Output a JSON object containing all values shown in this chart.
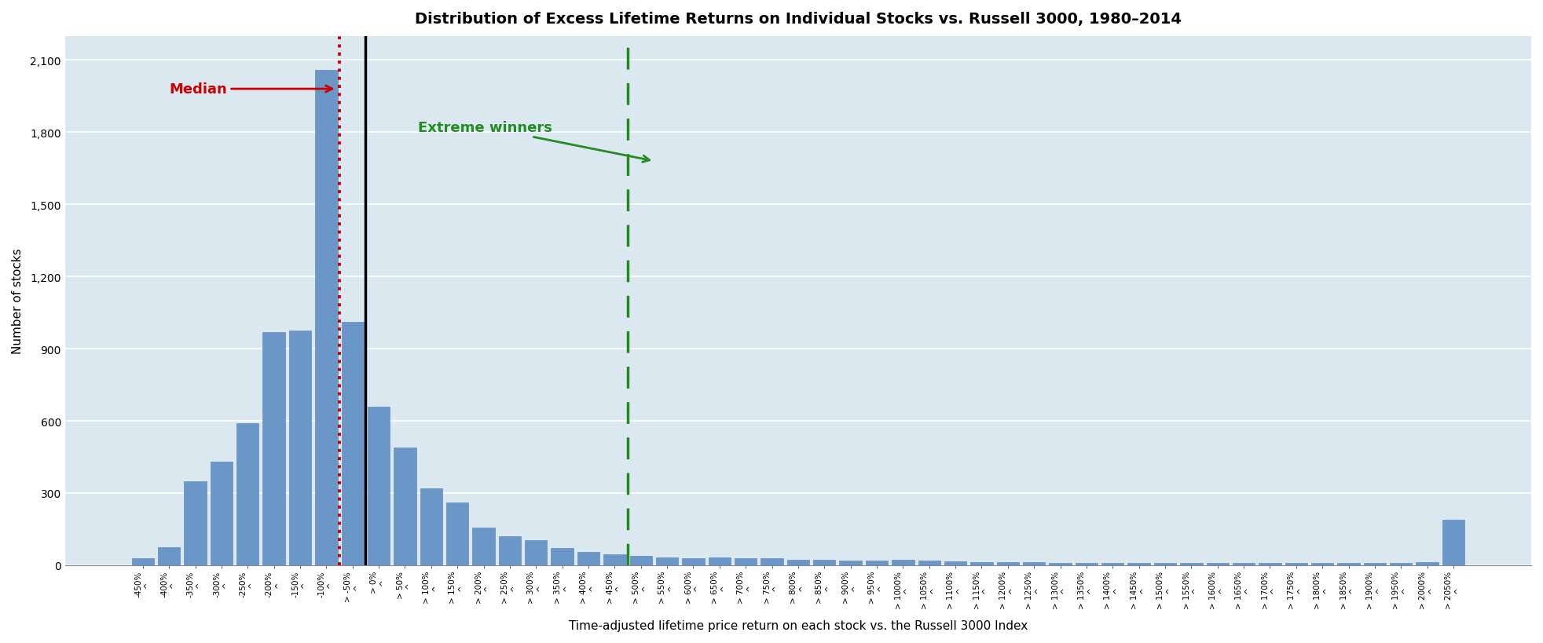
{
  "title": "Distribution of Excess Lifetime Returns on Individual Stocks vs. Russell 3000, 1980–2014",
  "ylabel": "Number of stocks",
  "xlabel": "Time-adjusted lifetime price return on each stock vs. the Russell 3000 Index",
  "bar_color": "#6b96c8",
  "bar_edge_color": "#5580b0",
  "background_color": "#dce8f0",
  "fig_bg": "#ffffff",
  "ylim": [
    0,
    2200
  ],
  "ytick_values": [
    0,
    300,
    600,
    900,
    1200,
    1500,
    1800,
    2100
  ],
  "categories_line1": [
    "-450%",
    "-400%",
    "-350%",
    "-300%",
    "-250%",
    "-200%",
    "-150%",
    "-100%",
    "> -50%",
    "> 0%",
    "> 50%",
    "> 100%",
    "> 150%",
    "> 200%",
    "> 250%",
    "> 300%",
    "> 350%",
    "> 400%",
    "> 450%",
    "> 500%",
    "> 550%",
    "> 600%",
    "> 650%",
    "> 700%",
    "> 750%",
    "> 800%",
    "> 850%",
    "> 900%",
    "> 950%",
    "> 1000%",
    "> 1050%",
    "> 1100%",
    "> 1150%",
    "> 1200%",
    "> 1250%",
    "> 1300%",
    "> 1350%",
    "> 1400%",
    "> 1450%",
    "> 1500%",
    "> 1550%",
    "> 1600%",
    "> 1650%",
    "> 1700%",
    "> 1750%",
    "> 1800%",
    "> 1850%",
    "> 1900%",
    "> 1950%",
    "> 2000%",
    "> 2050%"
  ],
  "has_caret": [
    false,
    false,
    false,
    false,
    false,
    false,
    false,
    false,
    true,
    true,
    true,
    true,
    true,
    true,
    true,
    true,
    true,
    true,
    true,
    true,
    true,
    true,
    true,
    true,
    true,
    true,
    true,
    true,
    true,
    false,
    false,
    false,
    false,
    false,
    false,
    false,
    false,
    false,
    false,
    false,
    false,
    false,
    false,
    false,
    false,
    false,
    false,
    false,
    false,
    false,
    true
  ],
  "values": [
    30,
    75,
    350,
    430,
    590,
    970,
    975,
    2060,
    1010,
    660,
    490,
    320,
    260,
    155,
    120,
    105,
    70,
    55,
    45,
    38,
    32,
    28,
    32,
    28,
    28,
    22,
    22,
    20,
    18,
    22,
    18,
    15,
    14,
    13,
    12,
    11,
    11,
    10,
    10,
    10,
    10,
    10,
    10,
    10,
    9,
    9,
    9,
    9,
    9,
    12,
    190
  ],
  "median_annotation": "Median",
  "extreme_annotation": "Extreme winners",
  "median_color": "#cc0000",
  "extreme_color": "#228b22",
  "zero_color": "#000000",
  "median_line_idx": 7.5,
  "zero_line_idx": 8.5,
  "extreme_line_idx": 18.5
}
